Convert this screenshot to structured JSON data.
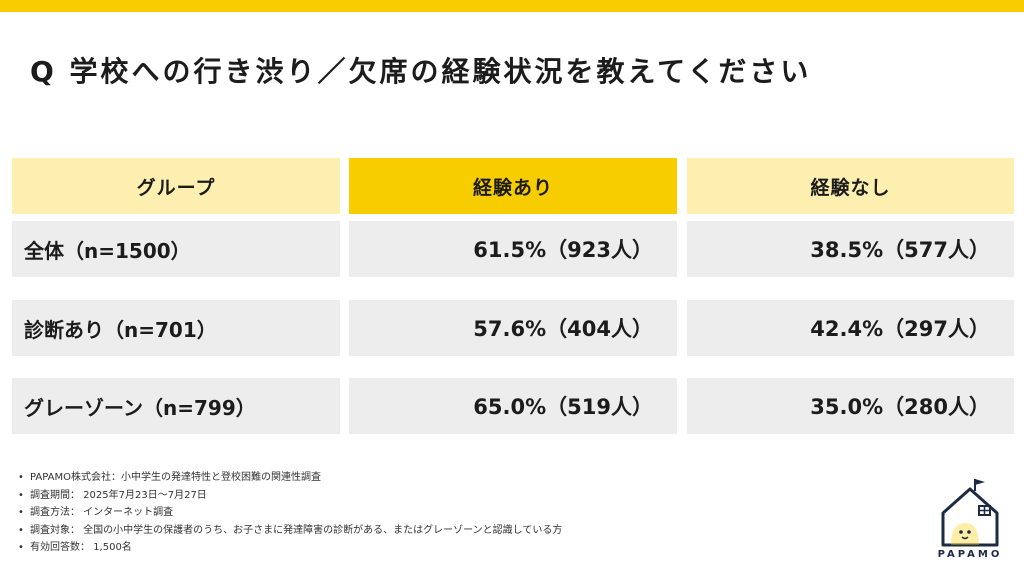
{
  "title": "Q 学校への行き渋り／欠席の経験状況を教えてください",
  "table": {
    "headers": [
      "グループ",
      "経験あり",
      "経験なし"
    ],
    "rows": [
      {
        "group": "全体（n=1500）",
        "yes": "61.5%（923人）",
        "no": "38.5%（577人）"
      },
      {
        "group": "診断あり（n=701）",
        "yes": "57.6%（404人）",
        "no": "42.4%（297人）"
      },
      {
        "group": "グレーゾーン（n=799）",
        "yes": "65.0%（519人）",
        "no": "35.0%（280人）"
      }
    ]
  },
  "notes": [
    "PAPAMO株式会社：小中学生の発達特性と登校困難の関連性調査",
    "調査期間： 2025年7月23日〜7月27日",
    "調査方法： インターネット調査",
    "調査対象： 全国の小中学生の保護者のうち、お子さまに発達障害の診断がある、またはグレーゾーンと認識している方",
    "有効回答数： 1,500名"
  ],
  "logo": {
    "text": "PAPAMO",
    "icon": "house-icon"
  },
  "colors": {
    "accent": "#f7cd00",
    "header_light": "#fcefb0",
    "row_bg": "#ededed",
    "logo_navy": "#1e2a44"
  }
}
